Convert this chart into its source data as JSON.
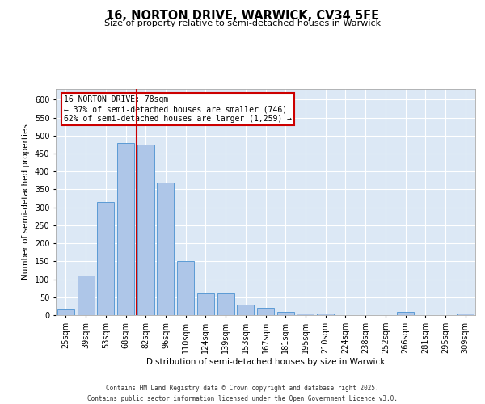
{
  "title_line1": "16, NORTON DRIVE, WARWICK, CV34 5FE",
  "title_line2": "Size of property relative to semi-detached houses in Warwick",
  "xlabel": "Distribution of semi-detached houses by size in Warwick",
  "ylabel": "Number of semi-detached properties",
  "categories": [
    "25sqm",
    "39sqm",
    "53sqm",
    "68sqm",
    "82sqm",
    "96sqm",
    "110sqm",
    "124sqm",
    "139sqm",
    "153sqm",
    "167sqm",
    "181sqm",
    "195sqm",
    "210sqm",
    "224sqm",
    "238sqm",
    "252sqm",
    "266sqm",
    "281sqm",
    "295sqm",
    "309sqm"
  ],
  "values": [
    15,
    110,
    315,
    480,
    475,
    370,
    150,
    60,
    60,
    30,
    20,
    10,
    5,
    5,
    0,
    0,
    0,
    10,
    0,
    0,
    5
  ],
  "bar_color": "#aec6e8",
  "bar_edge_color": "#5b9bd5",
  "property_label": "16 NORTON DRIVE: 78sqm",
  "pct_smaller": 37,
  "pct_larger": 62,
  "n_smaller": 746,
  "n_larger": 1259,
  "red_line_color": "#cc0000",
  "annotation_box_color": "#cc0000",
  "ylim": [
    0,
    630
  ],
  "bg_color": "#dce8f5",
  "footer_line1": "Contains HM Land Registry data © Crown copyright and database right 2025.",
  "footer_line2": "Contains public sector information licensed under the Open Government Licence v3.0."
}
